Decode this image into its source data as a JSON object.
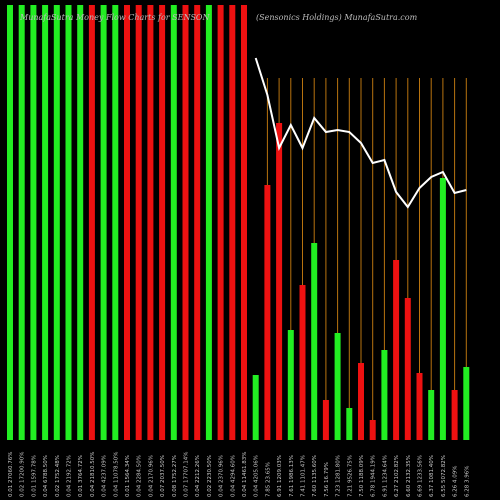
{
  "chart_data": {
    "type": "bar",
    "title_left": "MunafaSutra Money Flow Charts for SENSON",
    "title_right": "(Sensonics Holdings) MunafaSutra.com",
    "categories": [
      "0.01 27060.76%",
      "0.02 17200.90%",
      "0.01 1597.78%",
      "0.04 6788.50%",
      "0.02 1752.48%",
      "0.04 2192.72%",
      "0.01 3764.72%",
      "0.04 21810.50%",
      "0.04 4237.09%",
      "0.04 11078.50%",
      "0.01 1564.34%",
      "0.04 2284.50%",
      "0.04 2170.96%",
      "0.07 2037.50%",
      "0.08 1752.27%",
      "0.07 17707.14%",
      "0.04 2212.26%",
      "0.02 2230.50%",
      "0.04 2370.96%",
      "0.04 4294.60%",
      "0.04 11461.83%",
      "0.04 4205.06%",
      "7.85 23.65%",
      "6.91 1209.03%",
      "7.61 1986.13%",
      "7.41 1101.47%",
      "7.60 1135.60%",
      "7.56 16.79%",
      "7.23 1281.80%",
      "7.21 9526.75%",
      "7.50 1188.09%",
      "6.78 1944.19%",
      "6.91 1234.64%",
      "6.27 2102.82%",
      "6.60 2132.35%",
      "6.69 1233.56%",
      "6.37 1081.40%",
      "6.55 5072.82%",
      "6.26 4.09%",
      "6.28 3.96%"
    ],
    "values": [
      435,
      435,
      435,
      435,
      435,
      435,
      435,
      435,
      435,
      435,
      435,
      435,
      435,
      435,
      435,
      435,
      435,
      435,
      435,
      435,
      435,
      65,
      255,
      317,
      110,
      155,
      197,
      40,
      107,
      32,
      77,
      20,
      90,
      180,
      142,
      67,
      50,
      262,
      50,
      73
    ],
    "colors": [
      "#22ee22",
      "#22ee22",
      "#22ee22",
      "#22ee22",
      "#22ee22",
      "#22ee22",
      "#22ee22",
      "#ee1111",
      "#22ee22",
      "#22ee22",
      "#ee1111",
      "#ee1111",
      "#ee1111",
      "#ee1111",
      "#22ee22",
      "#ee1111",
      "#ee1111",
      "#22ee22",
      "#ee1111",
      "#ee1111",
      "#ee1111",
      "#22ee22",
      "#ee1111",
      "#ee1111",
      "#22ee22",
      "#ee1111",
      "#22ee22",
      "#ee1111",
      "#22ee22",
      "#22ee22",
      "#ee1111",
      "#ee1111",
      "#22ee22",
      "#ee1111",
      "#ee1111",
      "#ee1111",
      "#22ee22",
      "#22ee22",
      "#ee1111",
      "#22ee22"
    ],
    "line": {
      "color": "#ffffff",
      "values": [
        null,
        null,
        null,
        null,
        null,
        null,
        null,
        null,
        null,
        null,
        null,
        null,
        null,
        null,
        null,
        null,
        null,
        null,
        null,
        null,
        null,
        382,
        345,
        292,
        315,
        292,
        322,
        308,
        310,
        308,
        297,
        277,
        280,
        248,
        233,
        252,
        263,
        268,
        247,
        250
      ]
    },
    "ylim": [
      0,
      435
    ],
    "guide_color": "#b8730f"
  }
}
